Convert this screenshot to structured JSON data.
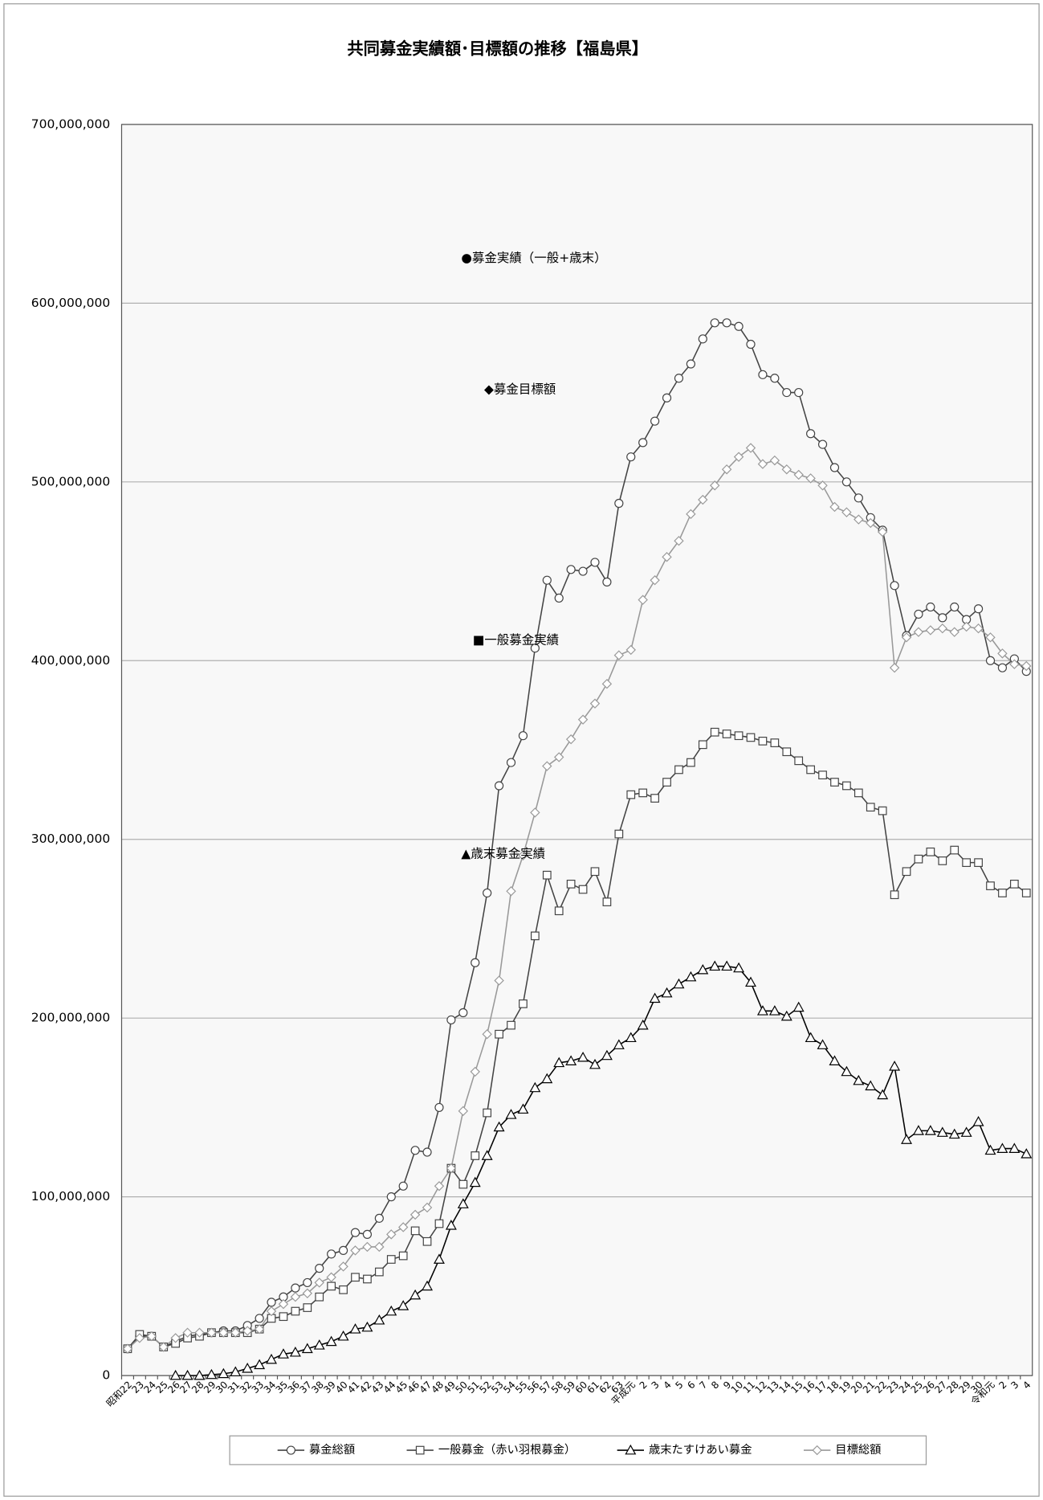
{
  "chart_data": {
    "type": "line",
    "title": "共同募金実績額･目標額の推移【福島県】",
    "annotations": [
      "●募金実績（一般+歳末）",
      "◆募金目標額",
      "■一般募金実績",
      "▲歳末募金実績"
    ],
    "categories": [
      "昭和22",
      "23",
      "24",
      "25",
      "26",
      "27",
      "28",
      "29",
      "30",
      "31",
      "32",
      "33",
      "34",
      "35",
      "36",
      "37",
      "38",
      "39",
      "40",
      "41",
      "42",
      "43",
      "44",
      "45",
      "46",
      "47",
      "48",
      "49",
      "50",
      "51",
      "52",
      "53",
      "54",
      "55",
      "56",
      "57",
      "58",
      "59",
      "60",
      "61",
      "62",
      "63",
      "平成元",
      "2",
      "3",
      "4",
      "5",
      "6",
      "7",
      "8",
      "9",
      "10",
      "11",
      "12",
      "13",
      "14",
      "15",
      "16",
      "17",
      "18",
      "19",
      "20",
      "21",
      "22",
      "23",
      "24",
      "25",
      "26",
      "27",
      "28",
      "29",
      "30",
      "令和元",
      "2",
      "3",
      "4"
    ],
    "ylim": [
      0,
      700000000
    ],
    "yticks": [
      0,
      {
        "value": 100000000,
        "label": "100,000,000"
      },
      {
        "value": 200000000,
        "label": "200,000,000"
      },
      {
        "value": 300000000,
        "label": "300,000,000"
      },
      {
        "value": 400000000,
        "label": "400,000,000"
      },
      {
        "value": 500000000,
        "label": "500,000,000"
      },
      {
        "value": 600000000,
        "label": "600,000,000"
      },
      {
        "value": 700000000,
        "label": "700,000,000"
      }
    ],
    "grid": true,
    "legend": "bottom",
    "series": [
      {
        "name": "募金総額",
        "color": "#444444",
        "marker": "circle",
        "values": [
          15000000,
          22000000,
          22000000,
          16000000,
          19000000,
          22000000,
          23000000,
          24000000,
          25000000,
          25000000,
          28000000,
          32000000,
          41000000,
          44000000,
          49000000,
          52000000,
          60000000,
          68000000,
          70000000,
          80000000,
          79000000,
          88000000,
          100000000,
          106000000,
          126000000,
          125000000,
          150000000,
          199000000,
          203000000,
          231000000,
          270000000,
          330000000,
          343000000,
          358000000,
          407000000,
          445000000,
          435000000,
          451000000,
          450000000,
          455000000,
          444000000,
          488000000,
          514000000,
          522000000,
          534000000,
          547000000,
          558000000,
          566000000,
          580000000,
          589000000,
          589000000,
          587000000,
          577000000,
          560000000,
          558000000,
          550000000,
          550000000,
          527000000,
          521000000,
          508000000,
          500000000,
          491000000,
          480000000,
          473000000,
          442000000,
          414000000,
          426000000,
          430000000,
          424000000,
          430000000,
          423000000,
          429000000,
          400000000,
          396000000,
          401000000,
          394000000
        ]
      },
      {
        "name": "一般募金（赤い羽根募金）",
        "color": "#444444",
        "marker": "square",
        "values": [
          15000000,
          23000000,
          22000000,
          16000000,
          18000000,
          21000000,
          22000000,
          24000000,
          24000000,
          24000000,
          24000000,
          26000000,
          32000000,
          33000000,
          36000000,
          38000000,
          44000000,
          50000000,
          48000000,
          55000000,
          54000000,
          58000000,
          65000000,
          67000000,
          81000000,
          75000000,
          85000000,
          116000000,
          107000000,
          123000000,
          147000000,
          191000000,
          196000000,
          208000000,
          246000000,
          280000000,
          260000000,
          275000000,
          272000000,
          282000000,
          265000000,
          303000000,
          325000000,
          326000000,
          323000000,
          332000000,
          339000000,
          343000000,
          353000000,
          360000000,
          359000000,
          358000000,
          357000000,
          355000000,
          354000000,
          349000000,
          344000000,
          339000000,
          336000000,
          332000000,
          330000000,
          326000000,
          318000000,
          316000000,
          269000000,
          282000000,
          289000000,
          293000000,
          288000000,
          294000000,
          287000000,
          287000000,
          274000000,
          270000000,
          275000000,
          270000000
        ]
      },
      {
        "name": "歳末たすけあい募金",
        "color": "#000000",
        "marker": "triangle",
        "values": [
          null,
          null,
          null,
          null,
          0,
          0,
          0,
          500000,
          1000000,
          2000000,
          4000000,
          6000000,
          9000000,
          12000000,
          13000000,
          15000000,
          17000000,
          19000000,
          22000000,
          26000000,
          27000000,
          31000000,
          36000000,
          39000000,
          45000000,
          50000000,
          65000000,
          84000000,
          96000000,
          108000000,
          123000000,
          139000000,
          146000000,
          149000000,
          161000000,
          166000000,
          175000000,
          176000000,
          178000000,
          174000000,
          179000000,
          185000000,
          189000000,
          196000000,
          211000000,
          214000000,
          219000000,
          223000000,
          227000000,
          229000000,
          229000000,
          228000000,
          220000000,
          204000000,
          204000000,
          201000000,
          206000000,
          189000000,
          185000000,
          176000000,
          170000000,
          165000000,
          162000000,
          157000000,
          173000000,
          132000000,
          137000000,
          137000000,
          136000000,
          135000000,
          136000000,
          142000000,
          126000000,
          127000000,
          127000000,
          124000000
        ]
      },
      {
        "name": "目標総額",
        "color": "#999999",
        "marker": "diamond",
        "values": [
          15000000,
          21000000,
          22000000,
          16000000,
          21000000,
          24000000,
          24000000,
          24000000,
          24000000,
          24000000,
          25000000,
          26000000,
          36000000,
          40000000,
          44000000,
          46000000,
          52000000,
          55000000,
          61000000,
          70000000,
          72000000,
          72000000,
          79000000,
          83000000,
          90000000,
          94000000,
          106000000,
          116000000,
          148000000,
          170000000,
          191000000,
          221000000,
          271000000,
          291000000,
          315000000,
          341000000,
          346000000,
          356000000,
          367000000,
          376000000,
          387000000,
          403000000,
          406000000,
          434000000,
          445000000,
          458000000,
          467000000,
          482000000,
          490000000,
          498000000,
          507000000,
          514000000,
          519000000,
          510000000,
          512000000,
          507000000,
          504000000,
          502000000,
          498000000,
          486000000,
          483000000,
          479000000,
          477000000,
          472000000,
          396000000,
          413000000,
          416000000,
          417000000,
          418000000,
          416000000,
          419000000,
          418000000,
          413000000,
          404000000,
          398000000,
          397000000
        ]
      }
    ]
  }
}
